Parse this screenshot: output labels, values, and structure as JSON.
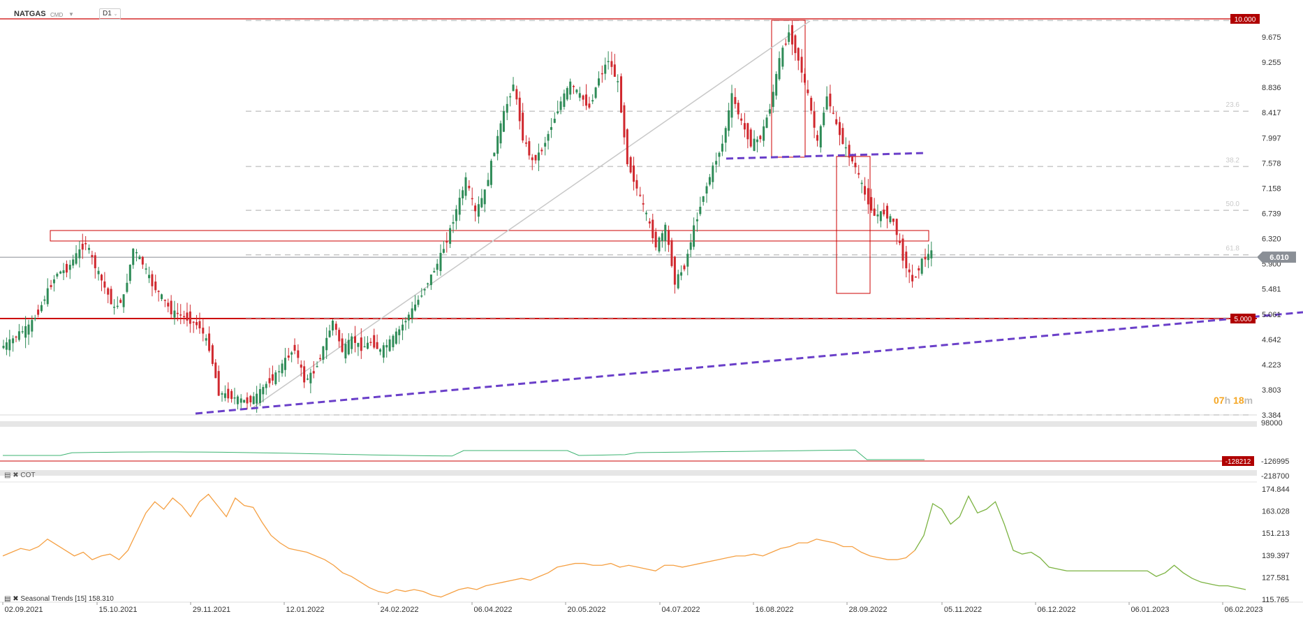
{
  "instrument": {
    "symbol": "NATGAS",
    "exchange": "CMD",
    "timeframe": "D1"
  },
  "timer": {
    "hours": "07",
    "minutes": "18"
  },
  "colors": {
    "up": "#2e8b57",
    "down": "#d0282e",
    "orange": "#f5a043",
    "green": "#7cb342",
    "purple": "#6a3fc9",
    "red": "#cc0000",
    "price_tag": "#8a8f96"
  },
  "chart_data": [
    {
      "type": "candlestick",
      "title": "NATGAS",
      "x_ticks": [
        "02.09.2021",
        "15.10.2021",
        "29.11.2021",
        "12.01.2022",
        "24.02.2022",
        "06.04.2022",
        "20.05.2022",
        "04.07.2022",
        "16.08.2022",
        "28.09.2022",
        "05.11.2022",
        "06.12.2022",
        "06.01.2023",
        "06.02.2023"
      ],
      "y_ticks": [
        9.675,
        9.255,
        8.836,
        8.417,
        7.997,
        7.578,
        7.158,
        6.739,
        6.32,
        5.9,
        5.481,
        5.061,
        4.642,
        4.223,
        3.803,
        3.384
      ],
      "ylim": [
        3.384,
        10.0
      ],
      "current_price": "6.010",
      "level_labels": [
        "10.000",
        "5.000"
      ],
      "fibonacci": [
        {
          "label": "23.6",
          "value": 8.44
        },
        {
          "label": "38.2",
          "value": 7.52
        },
        {
          "label": "50.0",
          "value": 6.79
        },
        {
          "label": "61.8",
          "value": 6.05
        }
      ],
      "approx_closes": [
        4.6,
        4.75,
        4.85,
        5.1,
        5.45,
        5.75,
        5.8,
        6.05,
        6.25,
        5.85,
        5.5,
        5.15,
        5.35,
        6.15,
        5.9,
        5.55,
        5.35,
        5.1,
        5.05,
        4.95,
        4.85,
        4.5,
        3.75,
        3.7,
        3.65,
        3.6,
        3.7,
        3.9,
        4.05,
        4.3,
        4.5,
        3.95,
        4.1,
        4.5,
        4.95,
        4.45,
        4.65,
        4.5,
        4.6,
        4.45,
        4.6,
        4.8,
        5.05,
        5.3,
        5.6,
        5.9,
        6.3,
        6.8,
        7.3,
        6.75,
        7.1,
        7.8,
        8.4,
        8.9,
        8.0,
        7.6,
        7.8,
        8.2,
        8.6,
        8.9,
        8.7,
        8.5,
        9.0,
        9.3,
        8.9,
        7.6,
        7.15,
        6.7,
        6.2,
        6.5,
        5.6,
        5.85,
        6.5,
        7.05,
        7.5,
        7.9,
        8.7,
        8.25,
        7.9,
        8.0,
        8.5,
        9.3,
        9.75,
        9.3,
        8.7,
        7.9,
        8.7,
        8.2,
        7.8,
        7.5,
        7.05,
        6.7,
        6.75,
        6.6,
        6.0,
        5.6,
        5.95,
        6.1
      ]
    },
    {
      "type": "line",
      "title": "",
      "y_ticks": [
        98000,
        -126995,
        -218700
      ],
      "current_value_label": "-128212"
    },
    {
      "type": "line",
      "title": "COT",
      "series_label": "Seasonal Trends [15] 158.310",
      "y_ticks": [
        174.844,
        163.028,
        151.213,
        139.397,
        127.581,
        115.765
      ],
      "values": [
        139,
        141,
        143,
        142,
        144,
        148,
        145,
        142,
        139,
        141,
        137,
        139,
        140,
        137,
        142,
        152,
        162,
        168,
        164,
        170,
        166,
        160,
        168,
        172,
        166,
        160,
        170,
        166,
        165,
        157,
        150,
        146,
        143,
        142,
        141,
        139,
        137,
        134,
        130,
        128,
        125,
        122,
        120,
        119,
        121,
        120,
        121,
        120,
        118,
        117,
        119,
        121,
        122,
        121,
        123,
        124,
        125,
        126,
        127,
        126,
        128,
        130,
        133,
        134,
        135,
        135,
        134,
        134,
        135,
        133,
        134,
        133,
        132,
        131,
        134,
        134,
        133,
        134,
        135,
        136,
        137,
        138,
        139,
        139,
        140,
        139,
        141,
        143,
        144,
        146,
        146,
        148,
        147,
        146,
        144,
        144,
        141,
        139,
        138,
        137,
        137,
        138,
        142,
        150,
        167,
        164,
        156,
        160,
        171,
        162,
        164,
        168,
        156,
        142,
        140,
        141,
        138,
        133,
        132,
        131,
        131,
        131,
        131,
        131,
        131,
        131,
        131,
        131,
        131,
        128,
        130,
        134,
        130,
        127,
        125,
        124,
        123,
        123,
        122,
        121
      ]
    }
  ]
}
